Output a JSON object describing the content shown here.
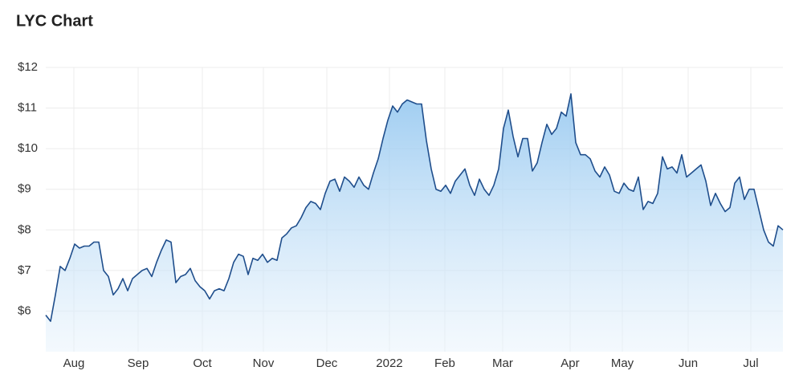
{
  "chart_data": {
    "type": "area",
    "title": "LYC Chart",
    "series": [
      {
        "name": "LYC",
        "color": "#1f4e8c",
        "values": [
          5.9,
          5.75,
          6.4,
          7.1,
          7.0,
          7.3,
          7.65,
          7.55,
          7.6,
          7.6,
          7.7,
          7.7,
          7.0,
          6.85,
          6.4,
          6.55,
          6.8,
          6.5,
          6.8,
          6.9,
          7.0,
          7.05,
          6.85,
          7.2,
          7.5,
          7.75,
          7.7,
          6.7,
          6.85,
          6.9,
          7.05,
          6.75,
          6.6,
          6.5,
          6.3,
          6.5,
          6.55,
          6.5,
          6.8,
          7.2,
          7.4,
          7.35,
          6.9,
          7.3,
          7.25,
          7.4,
          7.2,
          7.3,
          7.25,
          7.8,
          7.9,
          8.05,
          8.1,
          8.3,
          8.55,
          8.7,
          8.65,
          8.5,
          8.9,
          9.2,
          9.25,
          8.95,
          9.3,
          9.2,
          9.05,
          9.3,
          9.1,
          9.0,
          9.4,
          9.75,
          10.25,
          10.7,
          11.05,
          10.9,
          11.1,
          11.2,
          11.15,
          11.1,
          11.1,
          10.2,
          9.5,
          9.0,
          8.95,
          9.1,
          8.9,
          9.2,
          9.35,
          9.5,
          9.1,
          8.85,
          9.25,
          9.0,
          8.85,
          9.1,
          9.5,
          10.5,
          10.95,
          10.3,
          9.8,
          10.25,
          10.25,
          9.45,
          9.65,
          10.15,
          10.6,
          10.35,
          10.5,
          10.9,
          10.8,
          11.35,
          10.15,
          9.85,
          9.85,
          9.75,
          9.45,
          9.3,
          9.55,
          9.35,
          8.95,
          8.9,
          9.15,
          9.0,
          8.95,
          9.3,
          8.5,
          8.7,
          8.65,
          8.9,
          9.8,
          9.5,
          9.55,
          9.4,
          9.85,
          9.3,
          9.4,
          9.5,
          9.6,
          9.2,
          8.6,
          8.9,
          8.65,
          8.45,
          8.55,
          9.15,
          9.3,
          8.75,
          9.0,
          9.0,
          8.5,
          8.0,
          7.7,
          7.6,
          8.1,
          8.0
        ]
      }
    ],
    "xlim": [
      0,
      153
    ],
    "xticks": [
      {
        "value": 5.83,
        "label": "Aug"
      },
      {
        "value": 19.17,
        "label": "Sep"
      },
      {
        "value": 32.5,
        "label": "Oct"
      },
      {
        "value": 45.17,
        "label": "Nov"
      },
      {
        "value": 58.33,
        "label": "Dec"
      },
      {
        "value": 71.33,
        "label": "2022"
      },
      {
        "value": 82.83,
        "label": "Feb"
      },
      {
        "value": 94.83,
        "label": "Mar"
      },
      {
        "value": 108.83,
        "label": "Apr"
      },
      {
        "value": 119.67,
        "label": "May"
      },
      {
        "value": 133.33,
        "label": "Jun"
      },
      {
        "value": 146.33,
        "label": "Jul"
      }
    ],
    "ylim": [
      5,
      12
    ],
    "yticks": [
      {
        "value": 6,
        "label": "$6"
      },
      {
        "value": 7,
        "label": "$7"
      },
      {
        "value": 8,
        "label": "$8"
      },
      {
        "value": 9,
        "label": "$9"
      },
      {
        "value": 10,
        "label": "$10"
      },
      {
        "value": 11,
        "label": "$11"
      },
      {
        "value": 12,
        "label": "$12"
      }
    ],
    "grid": true
  }
}
